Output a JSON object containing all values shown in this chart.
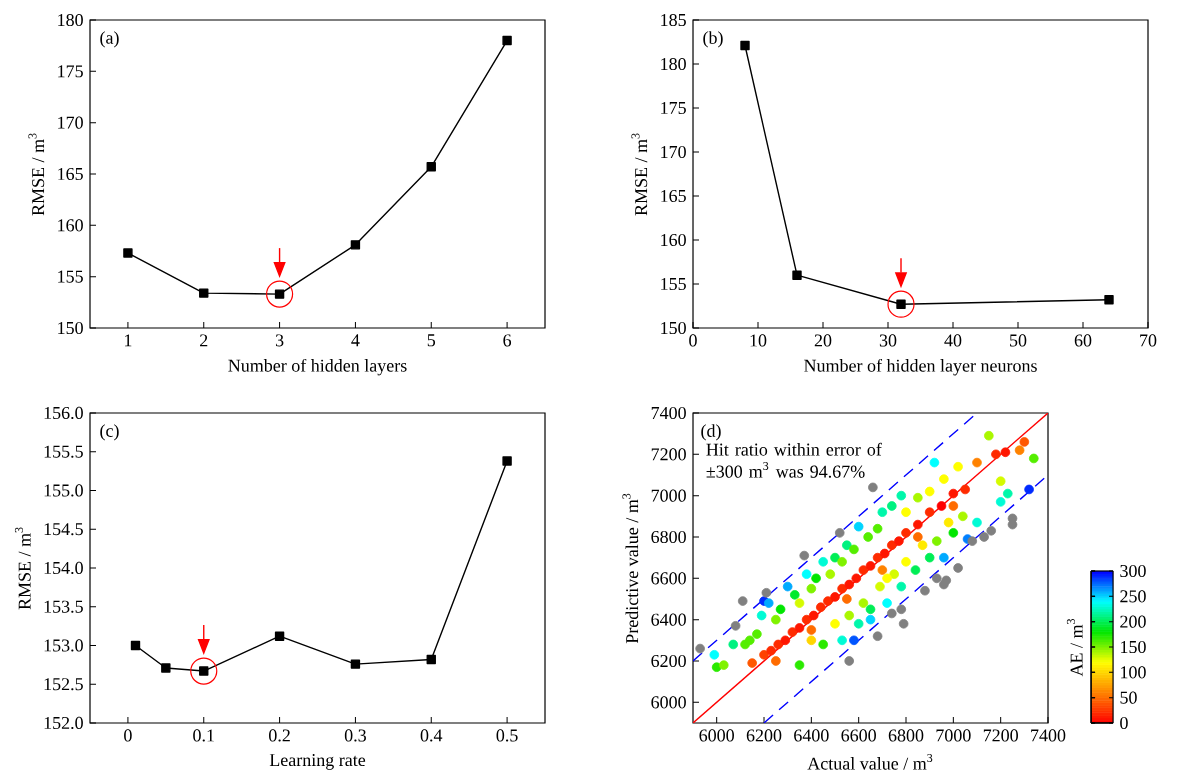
{
  "chart_data": [
    {
      "type": "line",
      "xlabel": "Number of hidden layers",
      "ylabel": "RMSE / m$^{3}$",
      "annotations": [
        "(a)"
      ],
      "x": [
        1,
        2,
        3,
        4,
        5,
        6
      ],
      "values": [
        157.3,
        153.4,
        153.3,
        158.1,
        165.7,
        178.0
      ],
      "color": "#000000",
      "marker": "square",
      "xlim": [
        0.5,
        6.5
      ],
      "xticks": [
        1,
        2,
        3,
        4,
        5,
        6
      ],
      "ylim": [
        150,
        180
      ],
      "yticks": [
        150,
        155,
        160,
        165,
        170,
        175,
        180
      ]
    },
    {
      "type": "line",
      "xlabel": "Number of hidden layer neurons",
      "ylabel": "RMSE / m$^{3}$",
      "annotations": [
        "(b)"
      ],
      "x": [
        8,
        16,
        32,
        64
      ],
      "values": [
        182.1,
        156.0,
        152.7,
        153.2
      ],
      "color": "#000000",
      "marker": "square",
      "xlim": [
        0,
        70
      ],
      "xticks": [
        0,
        10,
        20,
        30,
        40,
        50,
        60,
        70
      ],
      "ylim": [
        150,
        185
      ],
      "yticks": [
        150,
        155,
        160,
        165,
        170,
        175,
        180,
        185
      ]
    },
    {
      "type": "line",
      "xlabel": "Learning rate",
      "ylabel": "RMSE / m$^{3}$",
      "annotations": [
        "(c)"
      ],
      "x": [
        0.01,
        0.05,
        0.1,
        0.2,
        0.3,
        0.4,
        0.5
      ],
      "values": [
        153.0,
        152.71,
        152.67,
        153.12,
        152.76,
        152.82,
        155.38
      ],
      "color": "#000000",
      "marker": "square",
      "xlim": [
        -0.05,
        0.55
      ],
      "xticks": [
        0,
        0.1,
        0.2,
        0.3,
        0.4,
        0.5
      ],
      "ylim": [
        152.0,
        156.0
      ],
      "yticks": [
        {
          "value": 152.0,
          "label": "152.0"
        },
        {
          "value": 152.5,
          "label": "152.5"
        },
        {
          "value": 153.0,
          "label": "153.0"
        },
        {
          "value": 153.5,
          "label": "153.5"
        },
        {
          "value": 154.0,
          "label": "154.0"
        },
        {
          "value": 154.5,
          "label": "154.5"
        },
        {
          "value": 155.0,
          "label": "155.0"
        },
        {
          "value": 155.5,
          "label": "155.5"
        },
        {
          "value": 156.0,
          "label": "156.0"
        }
      ]
    },
    {
      "type": "scatter",
      "xlabel": "Actual value / m$^{3}$",
      "ylabel": "Predictive value / m$^{3}$",
      "clabel": "AE / m$^{3}$",
      "annotations": [
        "(d)",
        "Hit ratio within error of ±300 m$^{3}$ was 94.67%"
      ],
      "marker": "circle",
      "xlim": [
        5900,
        7400
      ],
      "xticks": [
        6000,
        6200,
        6400,
        6600,
        6800,
        7000,
        7200,
        7400
      ],
      "ylim": [
        5900,
        7400
      ],
      "yticks": [
        6000,
        6200,
        6400,
        6600,
        6800,
        7000,
        7200,
        7400
      ],
      "clim": [
        0,
        300
      ],
      "cticks": [
        0,
        50,
        100,
        150,
        200,
        250,
        300
      ],
      "series": [
        {
          "type": "scatter",
          "x": [
            5990,
            6000,
            6030,
            6070,
            6120,
            6140,
            6170,
            6190,
            6200,
            6220,
            6250,
            6270,
            6300,
            6330,
            6350,
            6380,
            6400,
            6420,
            6450,
            6480,
            6500,
            6530,
            6550,
            6580,
            6600,
            6640,
            6680,
            6700,
            6740,
            6780,
            6800,
            6850,
            6900,
            6920,
            6960,
            7020,
            7100,
            7150,
            6150,
            6200,
            6230,
            6260,
            6290,
            6320,
            6350,
            6380,
            6410,
            6440,
            6470,
            6500,
            6530,
            6560,
            6590,
            6620,
            6650,
            6680,
            6710,
            6740,
            6770,
            6800,
            6850,
            6900,
            6950,
            7000,
            7050,
            7180,
            7220,
            6250,
            6400,
            6550,
            6700,
            6850,
            7000,
            7300,
            7280,
            6350,
            6400,
            6450,
            6500,
            6530,
            6560,
            6600,
            6620,
            6650,
            6690,
            6720,
            6750,
            6780,
            6800,
            6840,
            6870,
            6900,
            6930,
            6960,
            7000,
            7040,
            7060,
            7100,
            7200,
            7230,
            7320,
            7340,
            7200,
            6650,
            6580,
            6720,
            6980
          ],
          "values": [
            6230,
            6170,
            6180,
            6280,
            6280,
            6300,
            6330,
            6420,
            6490,
            6480,
            6400,
            6450,
            6560,
            6520,
            6480,
            6620,
            6550,
            6600,
            6680,
            6620,
            6700,
            6680,
            6760,
            6740,
            6850,
            6800,
            6840,
            6920,
            6950,
            7000,
            6920,
            6990,
            7020,
            7160,
            7080,
            7140,
            7160,
            7290,
            6190,
            6230,
            6250,
            6280,
            6300,
            6340,
            6360,
            6400,
            6420,
            6460,
            6490,
            6510,
            6550,
            6570,
            6600,
            6640,
            6660,
            6700,
            6720,
            6760,
            6780,
            6820,
            6860,
            6920,
            6950,
            7010,
            7030,
            7200,
            7210,
            6200,
            6350,
            6500,
            6640,
            6800,
            6950,
            7260,
            7220,
            6180,
            6300,
            6280,
            6380,
            6300,
            6420,
            6380,
            6480,
            6450,
            6560,
            6480,
            6620,
            6560,
            6680,
            6640,
            6760,
            6700,
            6780,
            6700,
            6820,
            6900,
            6790,
            6870,
            6970,
            7010,
            7030,
            7180,
            7070,
            6400,
            6300,
            6600,
            6870
          ],
          "colors": [
            "#00FFFF",
            "#2BEA00",
            "#80F200",
            "#00F280",
            "#55EE00",
            "#55EE00",
            "#55EE00",
            "#00FBD5",
            "#002BFF",
            "#00AAFF",
            "#80F200",
            "#00E600",
            "#00AAFF",
            "#00EA2B",
            "#D5FB00",
            "#00FFFF",
            "#80F200",
            "#00E600",
            "#00FBD5",
            "#AAF700",
            "#00EE55",
            "#80F200",
            "#00F280",
            "#55EE00",
            "#00D5FF",
            "#55EE00",
            "#55EE00",
            "#00F7AA",
            "#00F280",
            "#00F7AA",
            "#FFFF00",
            "#AAF700",
            "#FFFF00",
            "#00FFFF",
            "#FFFF00",
            "#FFFF00",
            "#FF8200",
            "#AAF700",
            "#FF5700",
            "#FF4100",
            "#FF2B00",
            "#FF2B00",
            "#FF1600",
            "#FF2B00",
            "#FF1600",
            "#FF2B00",
            "#FF1600",
            "#FF2B00",
            "#FF2B00",
            "#FF1600",
            "#FF2B00",
            "#FF1600",
            "#FF1600",
            "#FF2B00",
            "#FF1600",
            "#FF2B00",
            "#FF1600",
            "#FF2B00",
            "#FF1600",
            "#FF2B00",
            "#FF1600",
            "#FF2B00",
            "#FF0000",
            "#FF1600",
            "#FF2B00",
            "#FF2B00",
            "#FF1600",
            "#FF6C00",
            "#FF6C00",
            "#FF6C00",
            "#FF8200",
            "#FF6C00",
            "#FF6C00",
            "#FF5700",
            "#FF8200",
            "#2BEA00",
            "#FFD500",
            "#2BEA00",
            "#FFFF00",
            "#00FBD5",
            "#AAF700",
            "#00F7AA",
            "#AAF700",
            "#00EE55",
            "#D5FB00",
            "#00FFFF",
            "#D5FB00",
            "#00F7AA",
            "#FFFF00",
            "#00EE55",
            "#FFEA00",
            "#00EE55",
            "#80F200",
            "#00AAFF",
            "#00E600",
            "#AAF700",
            "#0080FF",
            "#00FBD5",
            "#00FBD5",
            "#00F7AA",
            "#002BFF",
            "#55EE00",
            "#D5FB00",
            "#00D5FF",
            "#0055FF",
            "#FFFF00",
            "#FFEA00"
          ],
          "cvalues": [
            240,
            170,
            150,
            210,
            160,
            160,
            160,
            230,
            290,
            260,
            150,
            180,
            260,
            190,
            130,
            240,
            150,
            180,
            230,
            140,
            200,
            150,
            210,
            160,
            250,
            160,
            160,
            220,
            210,
            220,
            120,
            140,
            120,
            240,
            120,
            120,
            60,
            140,
            40,
            30,
            20,
            20,
            10,
            20,
            10,
            20,
            10,
            20,
            20,
            10,
            20,
            10,
            10,
            20,
            10,
            20,
            10,
            20,
            10,
            20,
            10,
            20,
            0,
            10,
            20,
            20,
            10,
            50,
            50,
            50,
            60,
            50,
            50,
            40,
            60,
            170,
            100,
            170,
            120,
            230,
            140,
            220,
            140,
            200,
            130,
            240,
            130,
            220,
            120,
            200,
            110,
            200,
            150,
            260,
            180,
            140,
            270,
            230,
            230,
            220,
            290,
            160,
            130,
            250,
            280,
            120,
            110
          ]
        },
        {
          "type": "scatter",
          "color": "#808080",
          "x": [
            5930,
            6080,
            6110,
            6210,
            6370,
            6520,
            6660,
            6560,
            6680,
            6740,
            6780,
            6790,
            6880,
            6930,
            6960,
            6970,
            7020,
            7080,
            7130,
            7160,
            7250,
            7250
          ],
          "values": [
            6260,
            6370,
            6490,
            6530,
            6710,
            6820,
            7040,
            6200,
            6320,
            6430,
            6450,
            6380,
            6540,
            6600,
            6570,
            6590,
            6650,
            6780,
            6800,
            6830,
            6860,
            6890
          ]
        },
        {
          "type": "line",
          "marker": "none",
          "color": "#ff0000",
          "x": [
            5900,
            7400
          ],
          "values": [
            5900,
            7400
          ]
        },
        {
          "type": "line",
          "marker": "none",
          "color": "#0000ff",
          "line_style": "dashed",
          "x": [
            5900,
            7100
          ],
          "values": [
            6200,
            7400
          ]
        },
        {
          "type": "line",
          "marker": "none",
          "color": "#0000ff",
          "line_style": "dashed",
          "x": [
            6200,
            7400
          ],
          "values": [
            5900,
            7100
          ]
        }
      ]
    }
  ]
}
